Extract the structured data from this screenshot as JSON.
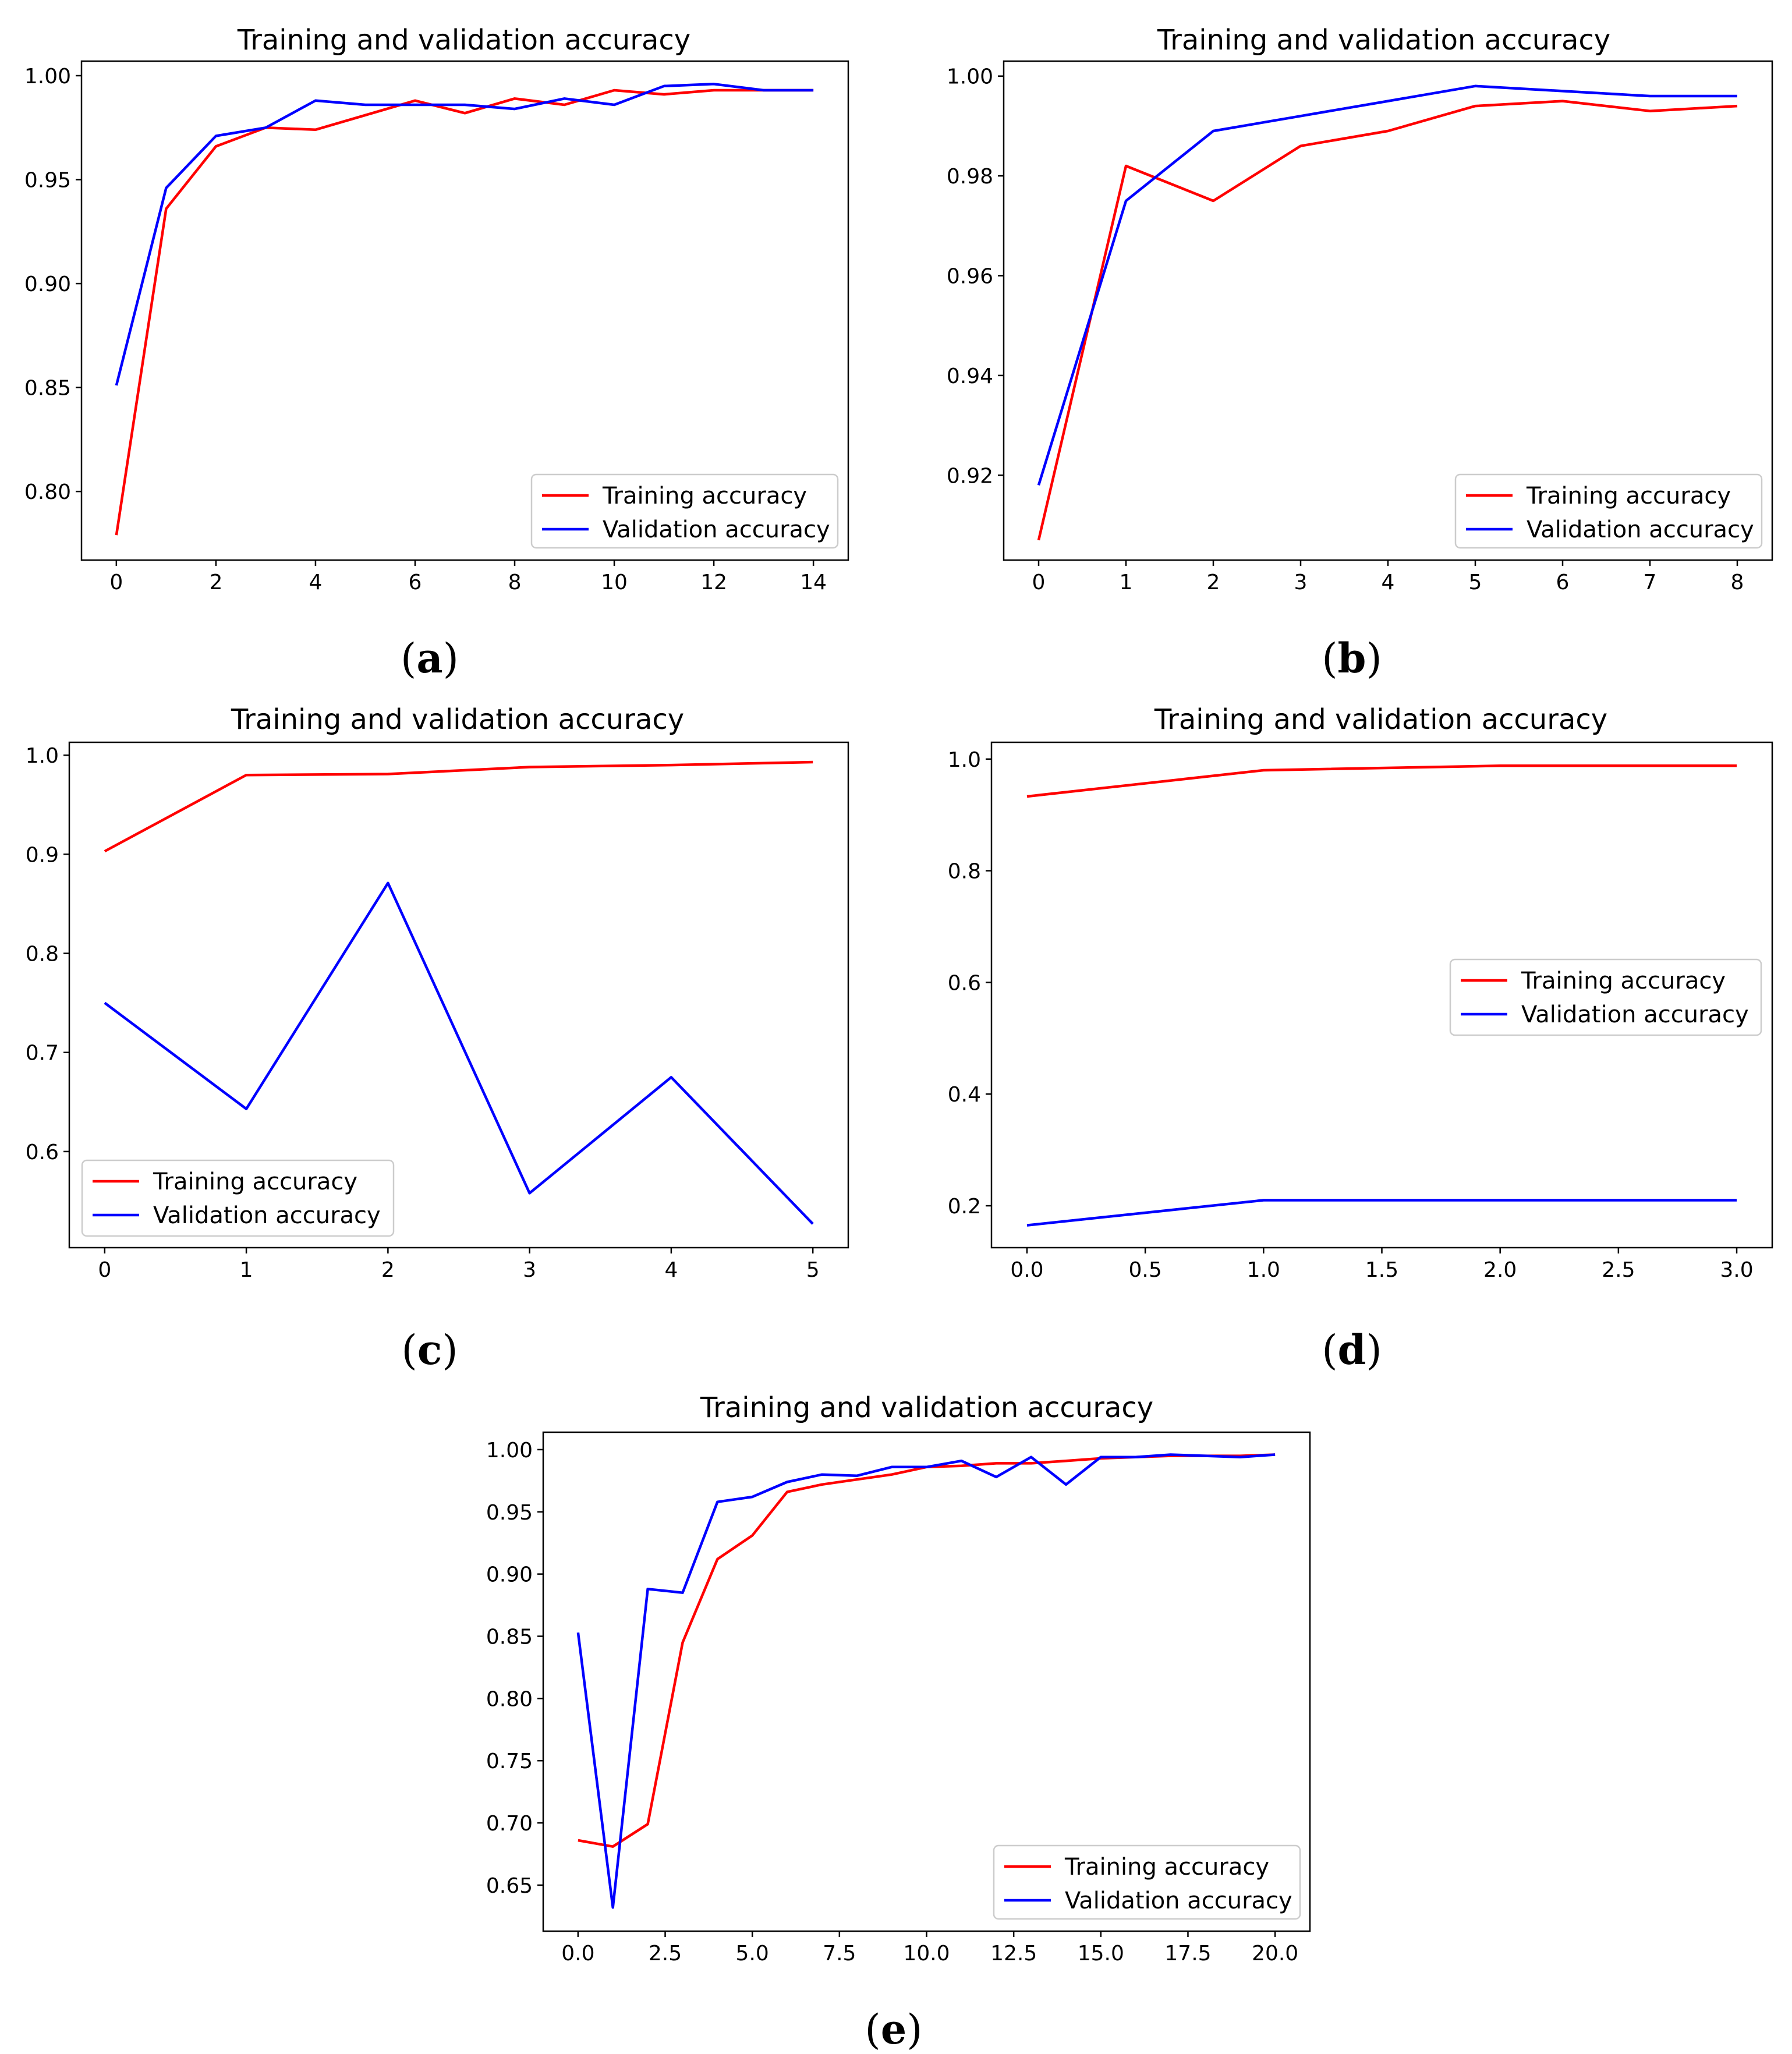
{
  "chart_data": [
    {
      "type": "line",
      "panel": "a",
      "caption_letter": "a",
      "title": "Training and validation accuracy",
      "xlabel": "",
      "ylabel": "",
      "xlim": [
        -0.7,
        14.7
      ],
      "ylim": [
        0.767,
        1.007
      ],
      "xticks": [
        0,
        2,
        4,
        6,
        8,
        10,
        12,
        14
      ],
      "xtick_labels": [
        "0",
        "2",
        "4",
        "6",
        "8",
        "10",
        "12",
        "14"
      ],
      "yticks": [
        0.8,
        0.85,
        0.9,
        0.95,
        1.0
      ],
      "ytick_labels": [
        "0.80",
        "0.85",
        "0.90",
        "0.95",
        "1.00"
      ],
      "legend_position": "lower-right",
      "series": [
        {
          "name": "Training accuracy",
          "color": "#ff0000",
          "x": [
            0,
            1,
            2,
            3,
            4,
            5,
            6,
            7,
            8,
            9,
            10,
            11,
            12,
            13,
            14
          ],
          "y": [
            0.779,
            0.936,
            0.966,
            0.975,
            0.974,
            0.981,
            0.988,
            0.982,
            0.989,
            0.986,
            0.993,
            0.991,
            0.993,
            0.993,
            0.993
          ]
        },
        {
          "name": "Validation accuracy",
          "color": "#0000ff",
          "x": [
            0,
            1,
            2,
            3,
            4,
            5,
            6,
            7,
            8,
            9,
            10,
            11,
            12,
            13,
            14
          ],
          "y": [
            0.851,
            0.946,
            0.971,
            0.975,
            0.988,
            0.986,
            0.986,
            0.986,
            0.984,
            0.989,
            0.986,
            0.995,
            0.996,
            0.993,
            0.993
          ]
        }
      ]
    },
    {
      "type": "line",
      "panel": "b",
      "caption_letter": "b",
      "title": "Training and validation accuracy",
      "xlabel": "",
      "ylabel": "",
      "xlim": [
        -0.4,
        8.4
      ],
      "ylim": [
        0.903,
        1.003
      ],
      "xticks": [
        0,
        1,
        2,
        3,
        4,
        5,
        6,
        7,
        8
      ],
      "xtick_labels": [
        "0",
        "1",
        "2",
        "3",
        "4",
        "5",
        "6",
        "7",
        "8"
      ],
      "yticks": [
        0.92,
        0.94,
        0.96,
        0.98,
        1.0
      ],
      "ytick_labels": [
        "0.92",
        "0.94",
        "0.96",
        "0.98",
        "1.00"
      ],
      "legend_position": "lower-right",
      "series": [
        {
          "name": "Training accuracy",
          "color": "#ff0000",
          "x": [
            0,
            1,
            2,
            3,
            4,
            5,
            6,
            7,
            8
          ],
          "y": [
            0.907,
            0.982,
            0.975,
            0.986,
            0.989,
            0.994,
            0.995,
            0.993,
            0.994
          ]
        },
        {
          "name": "Validation accuracy",
          "color": "#0000ff",
          "x": [
            0,
            1,
            2,
            3,
            4,
            5,
            6,
            7,
            8
          ],
          "y": [
            0.918,
            0.975,
            0.989,
            0.992,
            0.995,
            0.998,
            0.997,
            0.996,
            0.996
          ]
        }
      ]
    },
    {
      "type": "line",
      "panel": "c",
      "caption_letter": "c",
      "title": "Training and validation accuracy",
      "xlabel": "",
      "ylabel": "",
      "xlim": [
        -0.25,
        5.25
      ],
      "ylim": [
        0.503,
        1.013
      ],
      "xticks": [
        0,
        1,
        2,
        3,
        4,
        5
      ],
      "xtick_labels": [
        "0",
        "1",
        "2",
        "3",
        "4",
        "5"
      ],
      "yticks": [
        0.6,
        0.7,
        0.8,
        0.9,
        1.0
      ],
      "ytick_labels": [
        "0.6",
        "0.7",
        "0.8",
        "0.9",
        "1.0"
      ],
      "legend_position": "lower-left",
      "series": [
        {
          "name": "Training accuracy",
          "color": "#ff0000",
          "x": [
            0,
            1,
            2,
            3,
            4,
            5
          ],
          "y": [
            0.903,
            0.98,
            0.981,
            0.988,
            0.99,
            0.993
          ]
        },
        {
          "name": "Validation accuracy",
          "color": "#0000ff",
          "x": [
            0,
            1,
            2,
            3,
            4,
            5
          ],
          "y": [
            0.75,
            0.643,
            0.871,
            0.558,
            0.675,
            0.527
          ]
        }
      ]
    },
    {
      "type": "line",
      "panel": "d",
      "caption_letter": "d",
      "title": "Training and validation accuracy",
      "xlabel": "",
      "ylabel": "",
      "xlim": [
        -0.15,
        3.15
      ],
      "ylim": [
        0.125,
        1.03
      ],
      "xticks": [
        0.0,
        0.5,
        1.0,
        1.5,
        2.0,
        2.5,
        3.0
      ],
      "xtick_labels": [
        "0.0",
        "0.5",
        "1.0",
        "1.5",
        "2.0",
        "2.5",
        "3.0"
      ],
      "yticks": [
        0.2,
        0.4,
        0.6,
        0.8,
        1.0
      ],
      "ytick_labels": [
        "0.2",
        "0.4",
        "0.6",
        "0.8",
        "1.0"
      ],
      "legend_position": "center-right",
      "series": [
        {
          "name": "Training accuracy",
          "color": "#ff0000",
          "x": [
            0,
            1,
            2,
            3
          ],
          "y": [
            0.933,
            0.98,
            0.988,
            0.988
          ]
        },
        {
          "name": "Validation accuracy",
          "color": "#0000ff",
          "x": [
            0,
            1,
            2,
            3
          ],
          "y": [
            0.165,
            0.21,
            0.21,
            0.21
          ]
        }
      ]
    },
    {
      "type": "line",
      "panel": "e",
      "caption_letter": "e",
      "title": "Training and validation accuracy",
      "xlabel": "",
      "ylabel": "",
      "xlim": [
        -1.0,
        21.0
      ],
      "ylim": [
        0.613,
        1.014
      ],
      "xticks": [
        0.0,
        2.5,
        5.0,
        7.5,
        10.0,
        12.5,
        15.0,
        17.5,
        20.0
      ],
      "xtick_labels": [
        "0.0",
        "2.5",
        "5.0",
        "7.5",
        "10.0",
        "12.5",
        "15.0",
        "17.5",
        "20.0"
      ],
      "yticks": [
        0.65,
        0.7,
        0.75,
        0.8,
        0.85,
        0.9,
        0.95,
        1.0
      ],
      "ytick_labels": [
        "0.65",
        "0.70",
        "0.75",
        "0.80",
        "0.85",
        "0.90",
        "0.95",
        "1.00"
      ],
      "legend_position": "lower-right",
      "series": [
        {
          "name": "Training accuracy",
          "color": "#ff0000",
          "x": [
            0,
            1,
            2,
            3,
            4,
            5,
            6,
            7,
            8,
            9,
            10,
            11,
            12,
            13,
            14,
            15,
            16,
            17,
            18,
            19,
            20
          ],
          "y": [
            0.686,
            0.681,
            0.699,
            0.845,
            0.912,
            0.931,
            0.966,
            0.972,
            0.976,
            0.98,
            0.986,
            0.987,
            0.989,
            0.989,
            0.991,
            0.993,
            0.994,
            0.995,
            0.995,
            0.995,
            0.996
          ]
        },
        {
          "name": "Validation accuracy",
          "color": "#0000ff",
          "x": [
            0,
            1,
            2,
            3,
            4,
            5,
            6,
            7,
            8,
            9,
            10,
            11,
            12,
            13,
            14,
            15,
            16,
            17,
            18,
            19,
            20
          ],
          "y": [
            0.853,
            0.632,
            0.888,
            0.885,
            0.958,
            0.962,
            0.974,
            0.98,
            0.979,
            0.986,
            0.986,
            0.991,
            0.978,
            0.994,
            0.972,
            0.994,
            0.994,
            0.996,
            0.995,
            0.994,
            0.996
          ]
        }
      ]
    }
  ]
}
